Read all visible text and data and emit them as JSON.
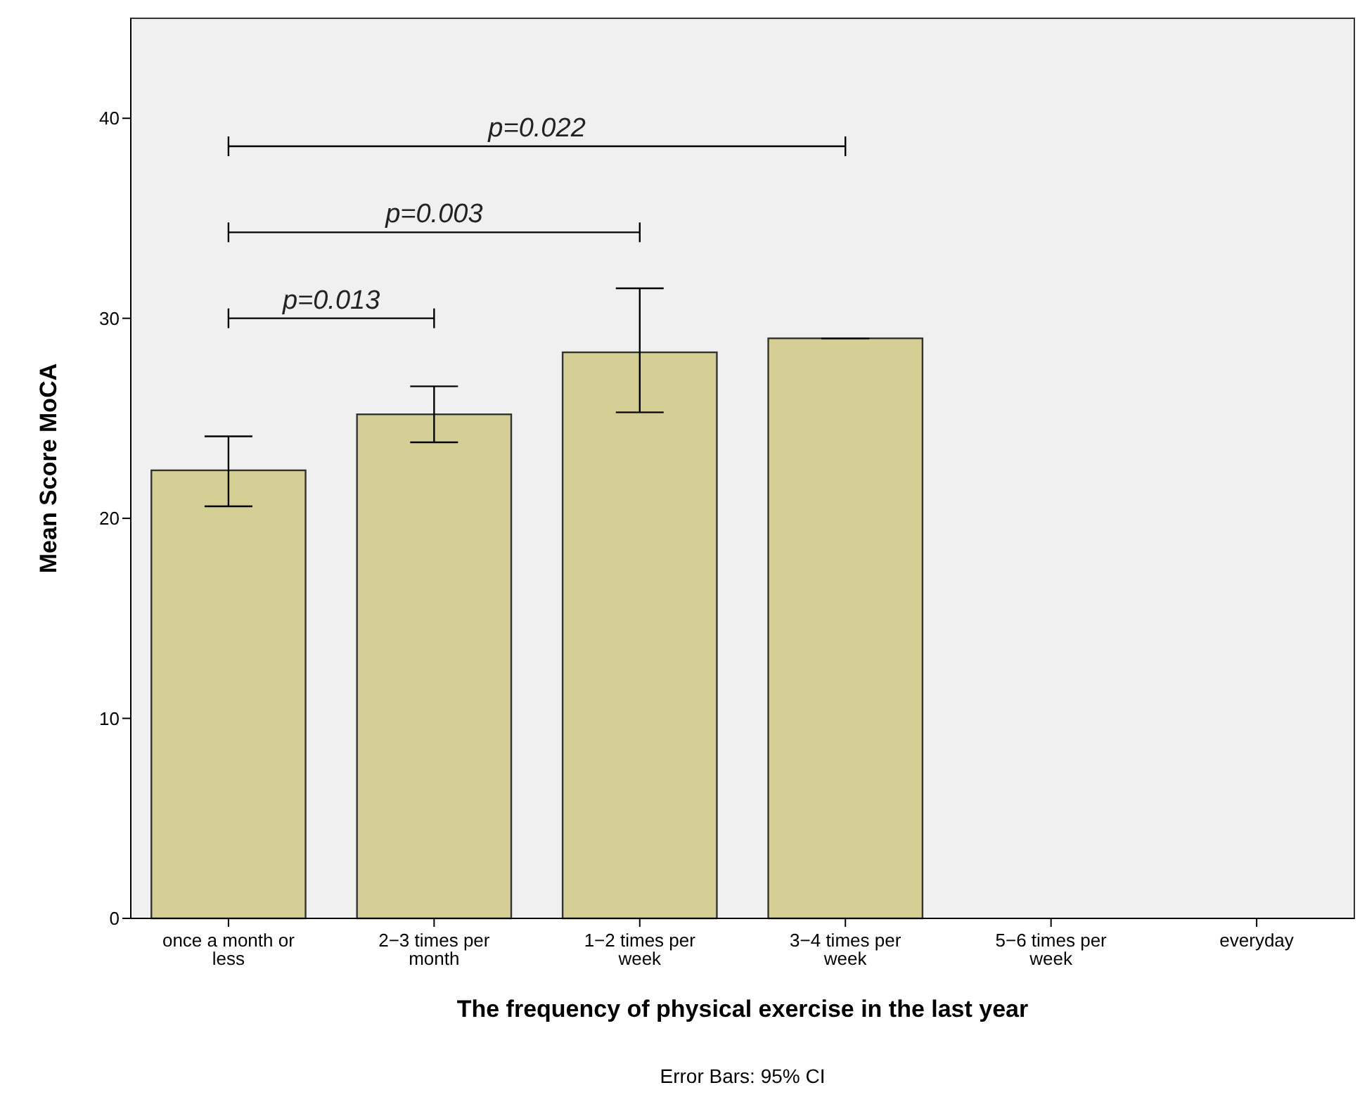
{
  "chart_data": {
    "type": "bar",
    "xlabel": "The frequency of physical exercise in the last year",
    "ylabel": "Mean Score MoCA",
    "categories": [
      "once a month or less",
      "2−3 times per month",
      "1−2 times per week",
      "3−4 times per week",
      "5−6 times per week",
      "everyday"
    ],
    "values": [
      22.4,
      25.2,
      28.3,
      29.0,
      null,
      null
    ],
    "errors": [
      [
        20.6,
        24.1
      ],
      [
        23.8,
        26.6
      ],
      [
        25.3,
        31.5
      ],
      [
        29.0,
        29.0
      ],
      null,
      null
    ],
    "color": "#d5cf96",
    "ylim": [
      0,
      45
    ],
    "yticks": [
      0,
      10,
      20,
      30,
      40
    ],
    "grid": false,
    "annotations": [
      "p=0.013",
      "p=0.003",
      "p=0.022",
      "Error Bars: 95% CI"
    ]
  }
}
